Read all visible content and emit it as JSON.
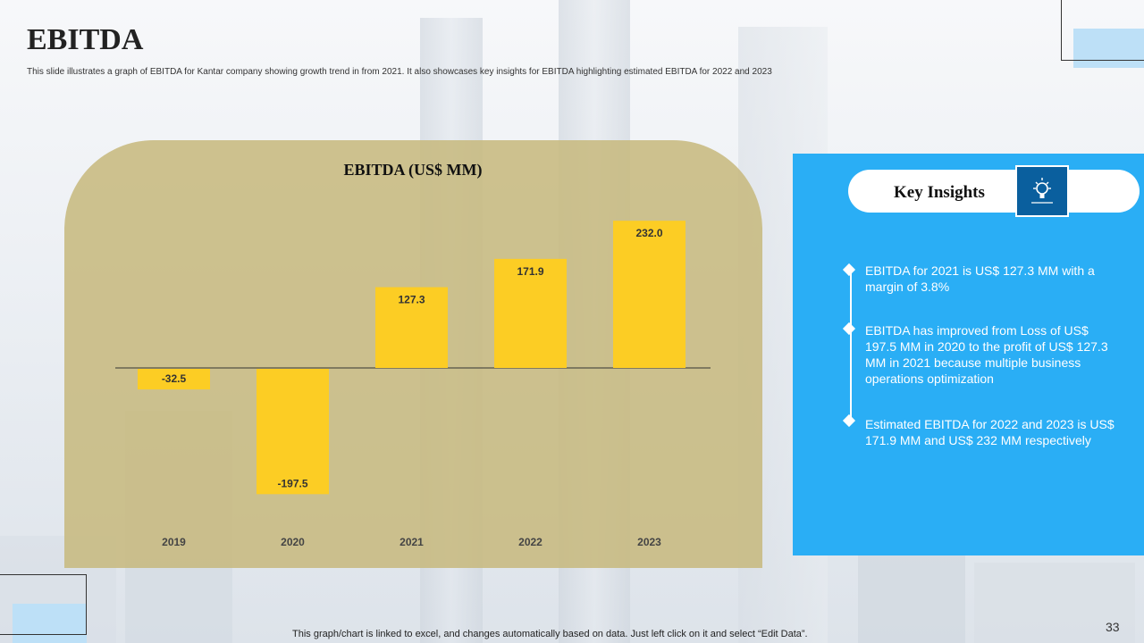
{
  "slide": {
    "title": "EBITDA",
    "subtitle": "This slide illustrates a graph of EBITDA  for Kantar company showing growth trend in from 2021. It also showcases key insights for EBITDA  highlighting estimated EBITDA  for 2022 and 2023",
    "footer_note": "This graph/chart is linked to excel, and changes automatically based on data. Just left click on it and select “Edit Data”.",
    "page_number": "33"
  },
  "colors": {
    "bar": "#fccd24",
    "chart_panel": "#c7ba80",
    "insights_panel": "#2aaef5",
    "icon_box": "#0a5f9e"
  },
  "chart_data": {
    "type": "bar",
    "title": "EBITDA (US$ MM)",
    "categories": [
      "2019",
      "2020",
      "2021",
      "2022",
      "2023"
    ],
    "values": [
      -32.5,
      -197.5,
      127.3,
      171.9,
      232.0
    ],
    "value_labels": [
      "-32.5",
      "-197.5",
      "127.3",
      "171.9",
      "232.0"
    ],
    "ylim": [
      -197.5,
      232.0
    ],
    "grid": false,
    "legend": "none"
  },
  "insights": {
    "title": "Key Insights",
    "icon": "lightbulb-icon",
    "items": [
      "EBITDA for 2021 is US$ 127.3 MM  with a margin of 3.8%",
      "EBITDA has improved from Loss of US$ 197.5 MM in 2020 to the profit of US$ 127.3 MM in 2021 because multiple business operations optimization",
      "Estimated EBITDA for 2022 and 2023 is US$ 171.9 MM and  US$ 232 MM  respectively"
    ]
  }
}
